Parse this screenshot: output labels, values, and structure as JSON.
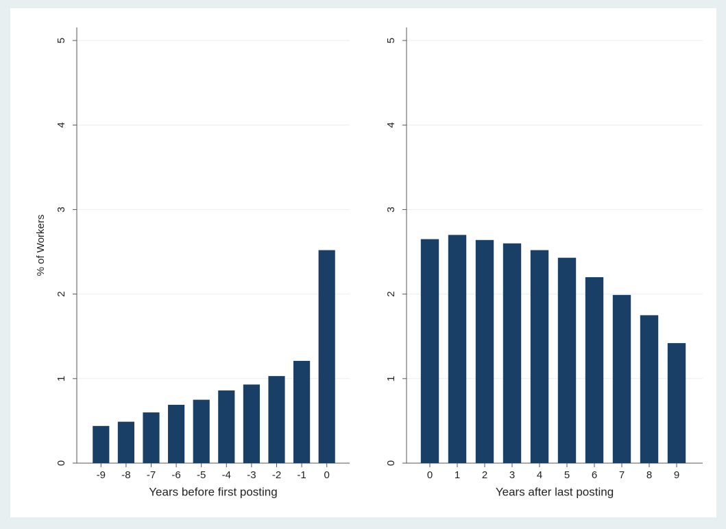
{
  "chart_data": [
    {
      "type": "bar",
      "categories": [
        "-9",
        "-8",
        "-7",
        "-6",
        "-5",
        "-4",
        "-3",
        "-2",
        "-1",
        "0"
      ],
      "values": [
        0.44,
        0.49,
        0.6,
        0.69,
        0.75,
        0.86,
        0.93,
        1.03,
        1.21,
        2.52
      ],
      "color": "#1a3f66",
      "ylim": [
        0,
        5
      ],
      "yticks": [
        0,
        1,
        2,
        3,
        4,
        5
      ],
      "grid": true,
      "xlabel": "Years before first posting",
      "ylabel": "% of Workers"
    },
    {
      "type": "bar",
      "categories": [
        "0",
        "1",
        "2",
        "3",
        "4",
        "5",
        "6",
        "7",
        "8",
        "9"
      ],
      "values": [
        2.65,
        2.7,
        2.64,
        2.6,
        2.52,
        2.43,
        2.2,
        1.99,
        1.75,
        1.42
      ],
      "color": "#1a3f66",
      "ylim": [
        0,
        5
      ],
      "yticks": [
        0,
        1,
        2,
        3,
        4,
        5
      ],
      "grid": true,
      "xlabel": "Years after last posting"
    }
  ]
}
